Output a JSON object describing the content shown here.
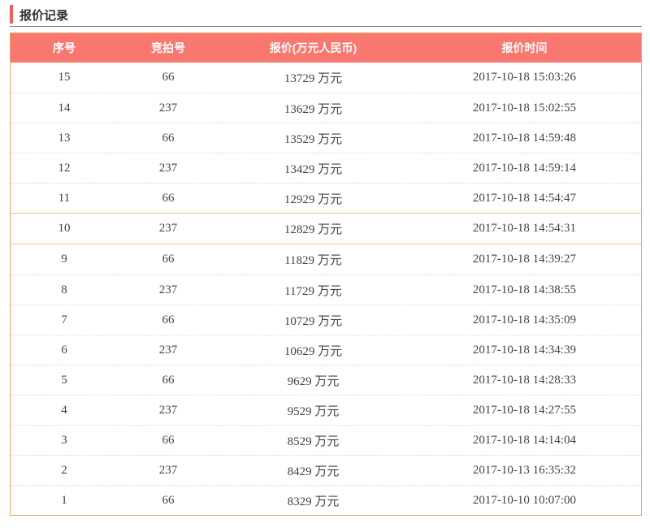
{
  "page": {
    "title": "报价记录"
  },
  "colors": {
    "accent_red": "#ec605c",
    "header_bg": "#f8776f",
    "header_text": "#ffffff",
    "border_orange": "#eda767",
    "section_divider": "#f2bf8b",
    "dotted_line": "#e8d2c6",
    "cell_text": "#434343"
  },
  "table": {
    "columns": [
      {
        "key": "seq",
        "label": "序号"
      },
      {
        "key": "bid",
        "label": "竞拍号"
      },
      {
        "key": "price",
        "label": "报价(万元人民币)"
      },
      {
        "key": "time",
        "label": "报价时间"
      }
    ],
    "sections": [
      {
        "rows": [
          {
            "seq": "15",
            "bid": "66",
            "price": "13729 万元",
            "time": "2017-10-18 15:03:26"
          },
          {
            "seq": "14",
            "bid": "237",
            "price": "13629 万元",
            "time": "2017-10-18 15:02:55"
          },
          {
            "seq": "13",
            "bid": "66",
            "price": "13529 万元",
            "time": "2017-10-18 14:59:48"
          },
          {
            "seq": "12",
            "bid": "237",
            "price": "13429 万元",
            "time": "2017-10-18 14:59:14"
          },
          {
            "seq": "11",
            "bid": "66",
            "price": "12929 万元",
            "time": "2017-10-18 14:54:47"
          }
        ]
      },
      {
        "rows": [
          {
            "seq": "10",
            "bid": "237",
            "price": "12829 万元",
            "time": "2017-10-18 14:54:31"
          }
        ]
      },
      {
        "rows": [
          {
            "seq": "9",
            "bid": "66",
            "price": "11829 万元",
            "time": "2017-10-18 14:39:27"
          },
          {
            "seq": "8",
            "bid": "237",
            "price": "11729 万元",
            "time": "2017-10-18 14:38:55"
          },
          {
            "seq": "7",
            "bid": "66",
            "price": "10729 万元",
            "time": "2017-10-18 14:35:09"
          },
          {
            "seq": "6",
            "bid": "237",
            "price": "10629 万元",
            "time": "2017-10-18 14:34:39"
          },
          {
            "seq": "5",
            "bid": "66",
            "price": "9629 万元",
            "time": "2017-10-18 14:28:33"
          },
          {
            "seq": "4",
            "bid": "237",
            "price": "9529 万元",
            "time": "2017-10-18 14:27:55"
          },
          {
            "seq": "3",
            "bid": "66",
            "price": "8529 万元",
            "time": "2017-10-18 14:14:04"
          },
          {
            "seq": "2",
            "bid": "237",
            "price": "8429 万元",
            "time": "2017-10-13 16:35:32"
          },
          {
            "seq": "1",
            "bid": "66",
            "price": "8329 万元",
            "time": "2017-10-10 10:07:00"
          }
        ]
      }
    ]
  }
}
